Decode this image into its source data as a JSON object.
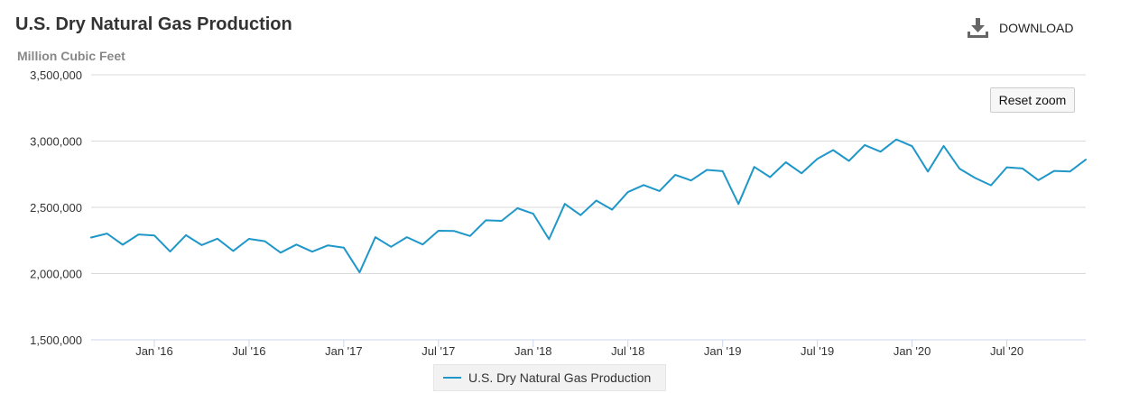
{
  "header": {
    "title": "U.S. Dry Natural Gas Production",
    "download_label": "DOWNLOAD",
    "reset_zoom_label": "Reset zoom"
  },
  "colors": {
    "series": "#1f97c9",
    "grid": "#d9d9d9",
    "axis_text": "#333333"
  },
  "chart_data": {
    "type": "line",
    "title": "U.S. Dry Natural Gas Production",
    "ylabel": "Million Cubic Feet",
    "xlabel": "",
    "ylim": [
      1500000,
      3500000
    ],
    "y_ticks": [
      1500000,
      2000000,
      2500000,
      3000000,
      3500000
    ],
    "y_tick_labels": [
      "1,500,000",
      "2,000,000",
      "2,500,000",
      "3,000,000",
      "3,500,000"
    ],
    "xlim": [
      "2015-09",
      "2020-12"
    ],
    "x_ticks": [
      {
        "x": "2016-01",
        "label": "Jan '16"
      },
      {
        "x": "2016-07",
        "label": "Jul '16"
      },
      {
        "x": "2017-01",
        "label": "Jan '17"
      },
      {
        "x": "2017-07",
        "label": "Jul '17"
      },
      {
        "x": "2018-01",
        "label": "Jan '18"
      },
      {
        "x": "2018-07",
        "label": "Jul '18"
      },
      {
        "x": "2019-01",
        "label": "Jan '19"
      },
      {
        "x": "2019-07",
        "label": "Jul '19"
      },
      {
        "x": "2020-01",
        "label": "Jan '20"
      },
      {
        "x": "2020-07",
        "label": "Jul '20"
      }
    ],
    "grid": true,
    "legend": "bottom-center",
    "series": [
      {
        "name": "U.S. Dry Natural Gas Production",
        "x": [
          "2015-09",
          "2015-10",
          "2015-11",
          "2015-12",
          "2016-01",
          "2016-02",
          "2016-03",
          "2016-04",
          "2016-05",
          "2016-06",
          "2016-07",
          "2016-08",
          "2016-09",
          "2016-10",
          "2016-11",
          "2016-12",
          "2017-01",
          "2017-02",
          "2017-03",
          "2017-04",
          "2017-05",
          "2017-06",
          "2017-07",
          "2017-08",
          "2017-09",
          "2017-10",
          "2017-11",
          "2017-12",
          "2018-01",
          "2018-02",
          "2018-03",
          "2018-04",
          "2018-05",
          "2018-06",
          "2018-07",
          "2018-08",
          "2018-09",
          "2018-10",
          "2018-11",
          "2018-12",
          "2019-01",
          "2019-02",
          "2019-03",
          "2019-04",
          "2019-05",
          "2019-06",
          "2019-07",
          "2019-08",
          "2019-09",
          "2019-10",
          "2019-11",
          "2019-12",
          "2020-01",
          "2020-02",
          "2020-03",
          "2020-04",
          "2020-05",
          "2020-06",
          "2020-07",
          "2020-08",
          "2020-09",
          "2020-10",
          "2020-11",
          "2020-12"
        ],
        "values": [
          2272000,
          2302000,
          2218000,
          2295000,
          2288000,
          2166000,
          2290000,
          2215000,
          2263000,
          2171000,
          2262000,
          2244000,
          2158000,
          2219000,
          2165000,
          2213000,
          2196000,
          2009000,
          2275000,
          2202000,
          2275000,
          2220000,
          2323000,
          2321000,
          2284000,
          2402000,
          2398000,
          2493000,
          2452000,
          2259000,
          2526000,
          2441000,
          2551000,
          2482000,
          2615000,
          2668000,
          2623000,
          2745000,
          2703000,
          2782000,
          2773000,
          2525000,
          2805000,
          2728000,
          2840000,
          2757000,
          2865000,
          2932000,
          2850000,
          2970000,
          2920000,
          3012000,
          2961000,
          2770000,
          2963000,
          2792000,
          2721000,
          2666000,
          2802000,
          2793000,
          2705000,
          2775000,
          2770000,
          2860000
        ]
      }
    ]
  },
  "legend": {
    "label": "U.S. Dry Natural Gas Production"
  }
}
